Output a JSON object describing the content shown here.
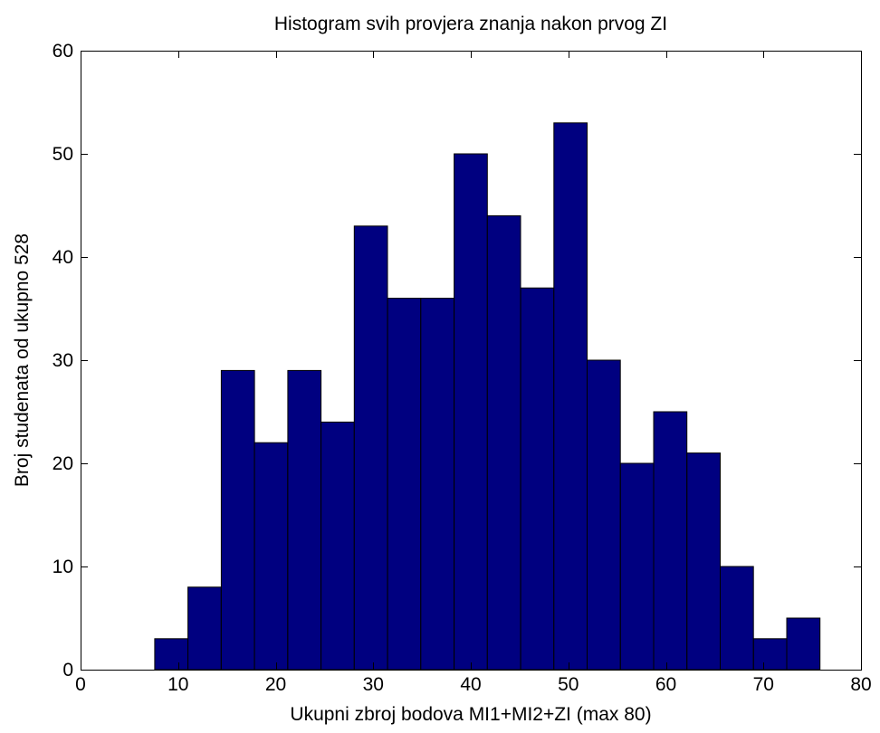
{
  "chart_data": {
    "type": "bar",
    "title": "Histogram svih provjera znanja nakon prvog ZI",
    "xlabel": "Ukupni zbroj bodova MI1+MI2+ZI (max 80)",
    "ylabel": "Broj studenata od ukupno 528",
    "xlim": [
      0,
      80
    ],
    "ylim": [
      0,
      60
    ],
    "xticks": [
      0,
      10,
      20,
      30,
      40,
      50,
      60,
      70,
      80
    ],
    "yticks": [
      0,
      10,
      20,
      30,
      40,
      50,
      60
    ],
    "bin_start": 7.6,
    "bin_width": 3.41,
    "values": [
      3,
      8,
      29,
      22,
      29,
      24,
      43,
      36,
      36,
      50,
      44,
      37,
      53,
      30,
      20,
      25,
      21,
      10,
      3,
      5
    ],
    "grid": false,
    "legend": "none",
    "colors": {
      "bar_fill": "#000080",
      "bar_edge": "#000000",
      "axes": "#000000",
      "background": "#ffffff"
    }
  }
}
